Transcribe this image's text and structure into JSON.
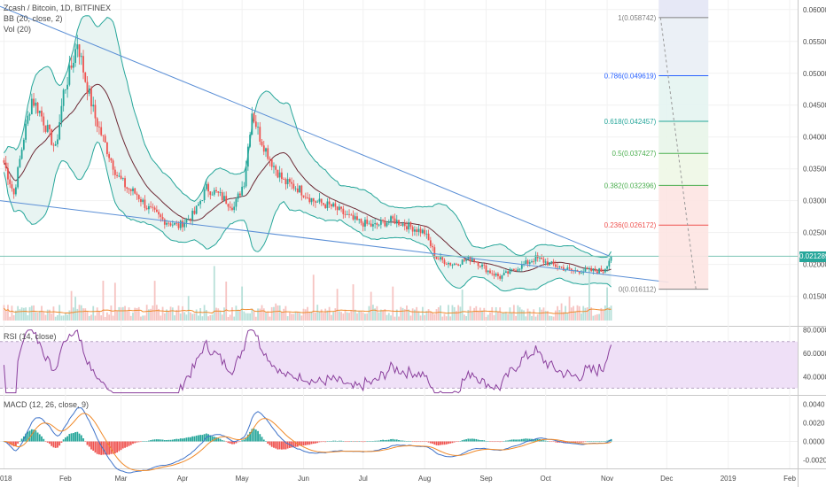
{
  "header": {
    "symbol_line": "Zcash / Bitcoin, 1D, BITFINEX",
    "bb_line": "BB (20, close, 2)",
    "vol_line": "Vol (20)"
  },
  "rsi_panel": {
    "label": "RSI (14, close)"
  },
  "macd_panel": {
    "label": "MACD (12, 26, close, 9)"
  },
  "current_price": "0.021289",
  "colors": {
    "up": "#26a69a",
    "down": "#ef5350",
    "bb_fill": "#e8f4f2",
    "bb_line": "#26a69a",
    "basis": "#6d2a35",
    "trend": "#5b8fd6",
    "rsi": "#8a3f9c",
    "rsi_band": "#efe0f7",
    "macd": "#3f73c9",
    "signal": "#f08a2a",
    "vol_ma": "#f08a2a"
  },
  "chart_data": [
    {
      "type": "candlestick",
      "ylim": [
        0.0105,
        0.0615
      ],
      "y_ticks": [
        "0.060000",
        "0.055000",
        "0.050000",
        "0.045000",
        "0.040000",
        "0.035000",
        "0.030000",
        "0.025000",
        "0.020000",
        "0.015000"
      ],
      "y_tick_values": [
        0.06,
        0.055,
        0.05,
        0.045,
        0.04,
        0.035,
        0.03,
        0.025,
        0.02,
        0.015
      ],
      "x_ticks": [
        "2018",
        "Feb",
        "Mar",
        "Apr",
        "May",
        "Jun",
        "Jul",
        "Aug",
        "Sep",
        "Oct",
        "Nov",
        "Dec",
        "2019",
        "Feb"
      ],
      "x_tick_days": [
        0,
        31,
        59,
        90,
        120,
        151,
        181,
        212,
        243,
        273,
        304,
        334,
        365,
        396
      ],
      "close_series_keypoints": [
        {
          "day": 0,
          "close": 0.036
        },
        {
          "day": 5,
          "close": 0.031
        },
        {
          "day": 10,
          "close": 0.04
        },
        {
          "day": 14,
          "close": 0.046
        },
        {
          "day": 18,
          "close": 0.044
        },
        {
          "day": 22,
          "close": 0.041
        },
        {
          "day": 26,
          "close": 0.038
        },
        {
          "day": 30,
          "close": 0.047
        },
        {
          "day": 34,
          "close": 0.051
        },
        {
          "day": 37,
          "close": 0.055
        },
        {
          "day": 41,
          "close": 0.049
        },
        {
          "day": 46,
          "close": 0.043
        },
        {
          "day": 52,
          "close": 0.038
        },
        {
          "day": 57,
          "close": 0.034
        },
        {
          "day": 62,
          "close": 0.032
        },
        {
          "day": 67,
          "close": 0.031
        },
        {
          "day": 72,
          "close": 0.029
        },
        {
          "day": 80,
          "close": 0.027
        },
        {
          "day": 88,
          "close": 0.026
        },
        {
          "day": 96,
          "close": 0.028
        },
        {
          "day": 102,
          "close": 0.032
        },
        {
          "day": 108,
          "close": 0.031
        },
        {
          "day": 116,
          "close": 0.029
        },
        {
          "day": 121,
          "close": 0.033
        },
        {
          "day": 125,
          "close": 0.044
        },
        {
          "day": 129,
          "close": 0.04
        },
        {
          "day": 135,
          "close": 0.036
        },
        {
          "day": 141,
          "close": 0.033
        },
        {
          "day": 148,
          "close": 0.032
        },
        {
          "day": 156,
          "close": 0.03
        },
        {
          "day": 166,
          "close": 0.029
        },
        {
          "day": 176,
          "close": 0.027
        },
        {
          "day": 186,
          "close": 0.026
        },
        {
          "day": 196,
          "close": 0.027
        },
        {
          "day": 204,
          "close": 0.026
        },
        {
          "day": 212,
          "close": 0.025
        },
        {
          "day": 218,
          "close": 0.021
        },
        {
          "day": 226,
          "close": 0.02
        },
        {
          "day": 236,
          "close": 0.021
        },
        {
          "day": 244,
          "close": 0.019
        },
        {
          "day": 250,
          "close": 0.018
        },
        {
          "day": 256,
          "close": 0.019
        },
        {
          "day": 262,
          "close": 0.02
        },
        {
          "day": 268,
          "close": 0.021
        },
        {
          "day": 276,
          "close": 0.02
        },
        {
          "day": 286,
          "close": 0.019
        },
        {
          "day": 296,
          "close": 0.019
        },
        {
          "day": 302,
          "close": 0.019
        },
        {
          "day": 306,
          "close": 0.0213
        }
      ],
      "annotations": {
        "horizontal_price_line": 0.021289,
        "trendlines": [
          {
            "from": {
              "day": -2,
              "price": 0.0605
            },
            "to": {
              "day": 306,
              "price": 0.0212
            }
          },
          {
            "from": {
              "day": -2,
              "price": 0.03
            },
            "to": {
              "day": 335,
              "price": 0.0172
            }
          }
        ],
        "fibonacci": [
          {
            "ratio": "1",
            "label": "1(0.058742)",
            "price": 0.058742,
            "color": "#808080",
            "fill": "#e6e6e6"
          },
          {
            "ratio": "0.786",
            "label": "0.786(0.049619)",
            "price": 0.049619,
            "color": "#2962ff",
            "fill": "#e9eef5"
          },
          {
            "ratio": "0.618",
            "label": "0.618(0.042457)",
            "price": 0.042457,
            "color": "#26a69a",
            "fill": "#e4f4f1"
          },
          {
            "ratio": "0.5",
            "label": "0.5(0.037427)",
            "price": 0.037427,
            "color": "#4caf50",
            "fill": "#e8f5e9"
          },
          {
            "ratio": "0.382",
            "label": "0.382(0.032396)",
            "price": 0.032396,
            "color": "#4caf50",
            "fill": "#eef7e6"
          },
          {
            "ratio": "0.236",
            "label": "0.236(0.026172)",
            "price": 0.026172,
            "color": "#ef5350",
            "fill": "#fde4e2"
          },
          {
            "ratio": "0",
            "label": "0(0.016112)",
            "price": 0.016112,
            "color": "#808080",
            "fill": "#fde4e2"
          }
        ]
      }
    },
    {
      "type": "line",
      "name": "RSI (14, close)",
      "ylim": [
        25,
        82
      ],
      "y_ticks": [
        "80.0000",
        "60.0000",
        "40.0000"
      ],
      "y_tick_values": [
        80,
        60,
        40
      ],
      "band": [
        30,
        70
      ]
    },
    {
      "type": "line",
      "name": "MACD (12, 26, close, 9)",
      "ylim": [
        -0.0028,
        0.0048
      ],
      "y_ticks": [
        "0.0040",
        "0.0020",
        "0.0000",
        "-0.0020"
      ],
      "y_tick_values": [
        0.004,
        0.002,
        0.0,
        -0.002
      ]
    }
  ]
}
